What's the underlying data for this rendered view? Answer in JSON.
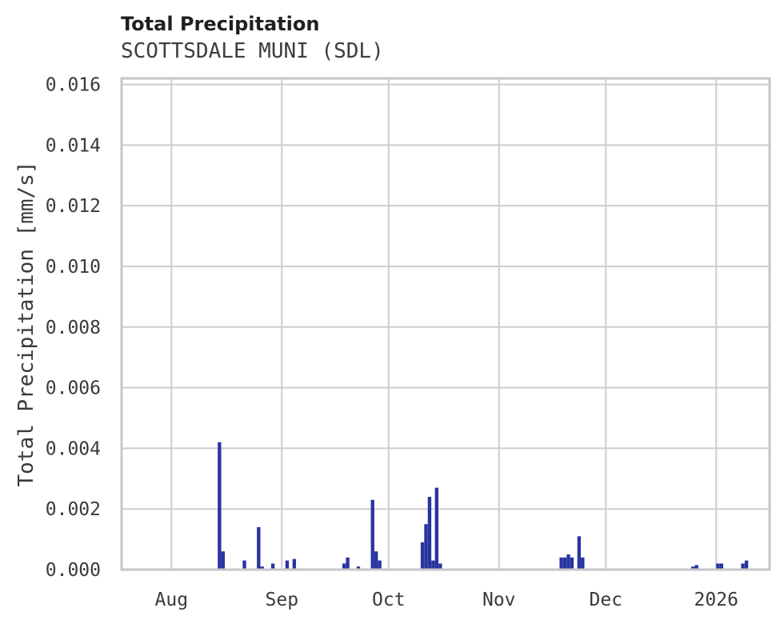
{
  "header": {
    "title": "Total Precipitation",
    "subtitle": "SCOTTSDALE MUNI (SDL)"
  },
  "chart_data": {
    "type": "bar",
    "title": "Total Precipitation",
    "subtitle": "SCOTTSDALE MUNI (SDL)",
    "xlabel": "",
    "ylabel": "Total Precipitation [mm/s]",
    "ylim": [
      0,
      0.0162
    ],
    "yticks": [
      0.0,
      0.002,
      0.004,
      0.006,
      0.008,
      0.01,
      0.012,
      0.014,
      0.016
    ],
    "ytick_labels": [
      "0.000",
      "0.002",
      "0.004",
      "0.006",
      "0.008",
      "0.010",
      "0.012",
      "0.014",
      "0.016"
    ],
    "x_domain": [
      "2025-07-18",
      "2026-01-16"
    ],
    "x_ticks": [
      {
        "date": "2025-08-01",
        "label": "Aug"
      },
      {
        "date": "2025-09-01",
        "label": "Sep"
      },
      {
        "date": "2025-10-01",
        "label": "Oct"
      },
      {
        "date": "2025-11-01",
        "label": "Nov"
      },
      {
        "date": "2025-12-01",
        "label": "Dec"
      },
      {
        "date": "2026-01-01",
        "label": "2026"
      }
    ],
    "grid": true,
    "legend": "none",
    "bar_color": "#28349f",
    "grid_color": "#cdcdcd",
    "border_color": "#c7c7c7",
    "series": [
      {
        "name": "Total Precipitation [mm/s]",
        "points": [
          [
            "2025-08-14",
            0.0042
          ],
          [
            "2025-08-15",
            0.0006
          ],
          [
            "2025-08-21",
            0.0003
          ],
          [
            "2025-08-25",
            0.0014
          ],
          [
            "2025-08-26",
            0.0001
          ],
          [
            "2025-08-29",
            0.0002
          ],
          [
            "2025-09-02",
            0.0003
          ],
          [
            "2025-09-04",
            0.00035
          ],
          [
            "2025-09-18",
            0.0002
          ],
          [
            "2025-09-19",
            0.0004
          ],
          [
            "2025-09-22",
            0.0001
          ],
          [
            "2025-09-26",
            0.0023
          ],
          [
            "2025-09-27",
            0.0006
          ],
          [
            "2025-09-28",
            0.0003
          ],
          [
            "2025-10-10",
            0.0009
          ],
          [
            "2025-10-11",
            0.0015
          ],
          [
            "2025-10-12",
            0.0024
          ],
          [
            "2025-10-13",
            0.0003
          ],
          [
            "2025-10-14",
            0.0027
          ],
          [
            "2025-10-15",
            0.0002
          ],
          [
            "2025-11-18",
            0.0004
          ],
          [
            "2025-11-19",
            0.0004
          ],
          [
            "2025-11-20",
            0.0005
          ],
          [
            "2025-11-21",
            0.0004
          ],
          [
            "2025-11-23",
            0.0011
          ],
          [
            "2025-11-24",
            0.0004
          ],
          [
            "2025-12-25",
            0.0001
          ],
          [
            "2025-12-26",
            0.00015
          ],
          [
            "2026-01-01",
            0.0002
          ],
          [
            "2026-01-02",
            0.0002
          ],
          [
            "2026-01-08",
            0.0002
          ],
          [
            "2026-01-09",
            0.0003
          ]
        ]
      }
    ]
  }
}
